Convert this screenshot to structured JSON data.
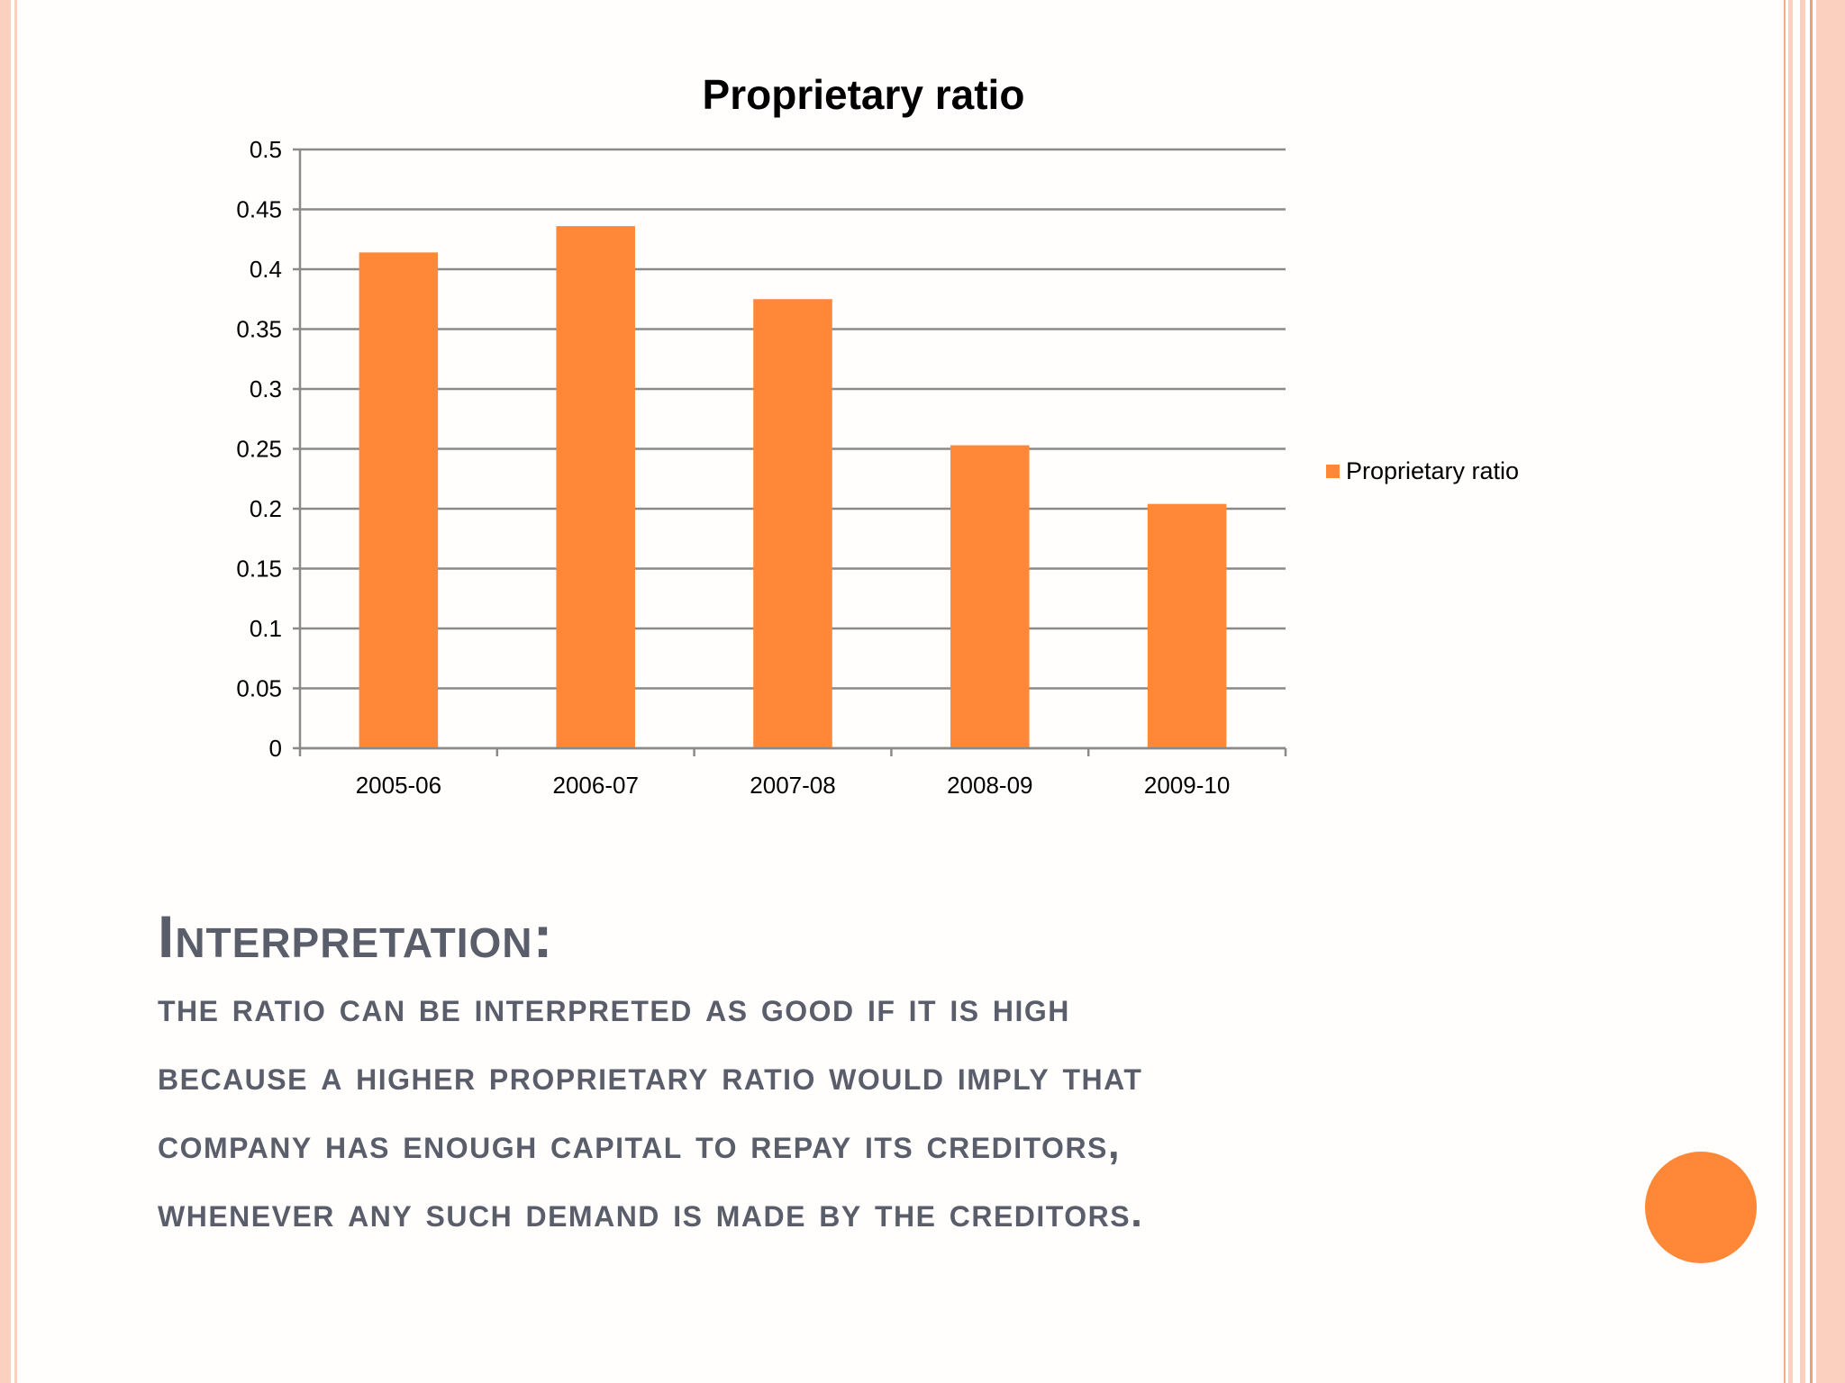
{
  "chart_data": {
    "type": "bar",
    "title": "Proprietary ratio",
    "categories": [
      "2005-06",
      "2006-07",
      "2007-08",
      "2008-09",
      "2009-10"
    ],
    "series": [
      {
        "name": "Proprietary ratio",
        "values": [
          0.414,
          0.436,
          0.375,
          0.253,
          0.204
        ]
      }
    ],
    "ylim": [
      0,
      0.5
    ],
    "yticks": [
      "0",
      "0.05",
      "0.1",
      "0.15",
      "0.2",
      "0.25",
      "0.3",
      "0.35",
      "0.4",
      "0.45",
      "0.5"
    ],
    "grid": true,
    "legend": "right",
    "bar_color": "#fe8838"
  },
  "interpretation": {
    "heading": "Interpretation:",
    "lines": [
      "the ratio can be interpreted as good if it is high",
      "because a higher proprietary ratio would imply that",
      "company has enough capital to repay its creditors,",
      "whenever any such demand is made by the creditors."
    ]
  }
}
